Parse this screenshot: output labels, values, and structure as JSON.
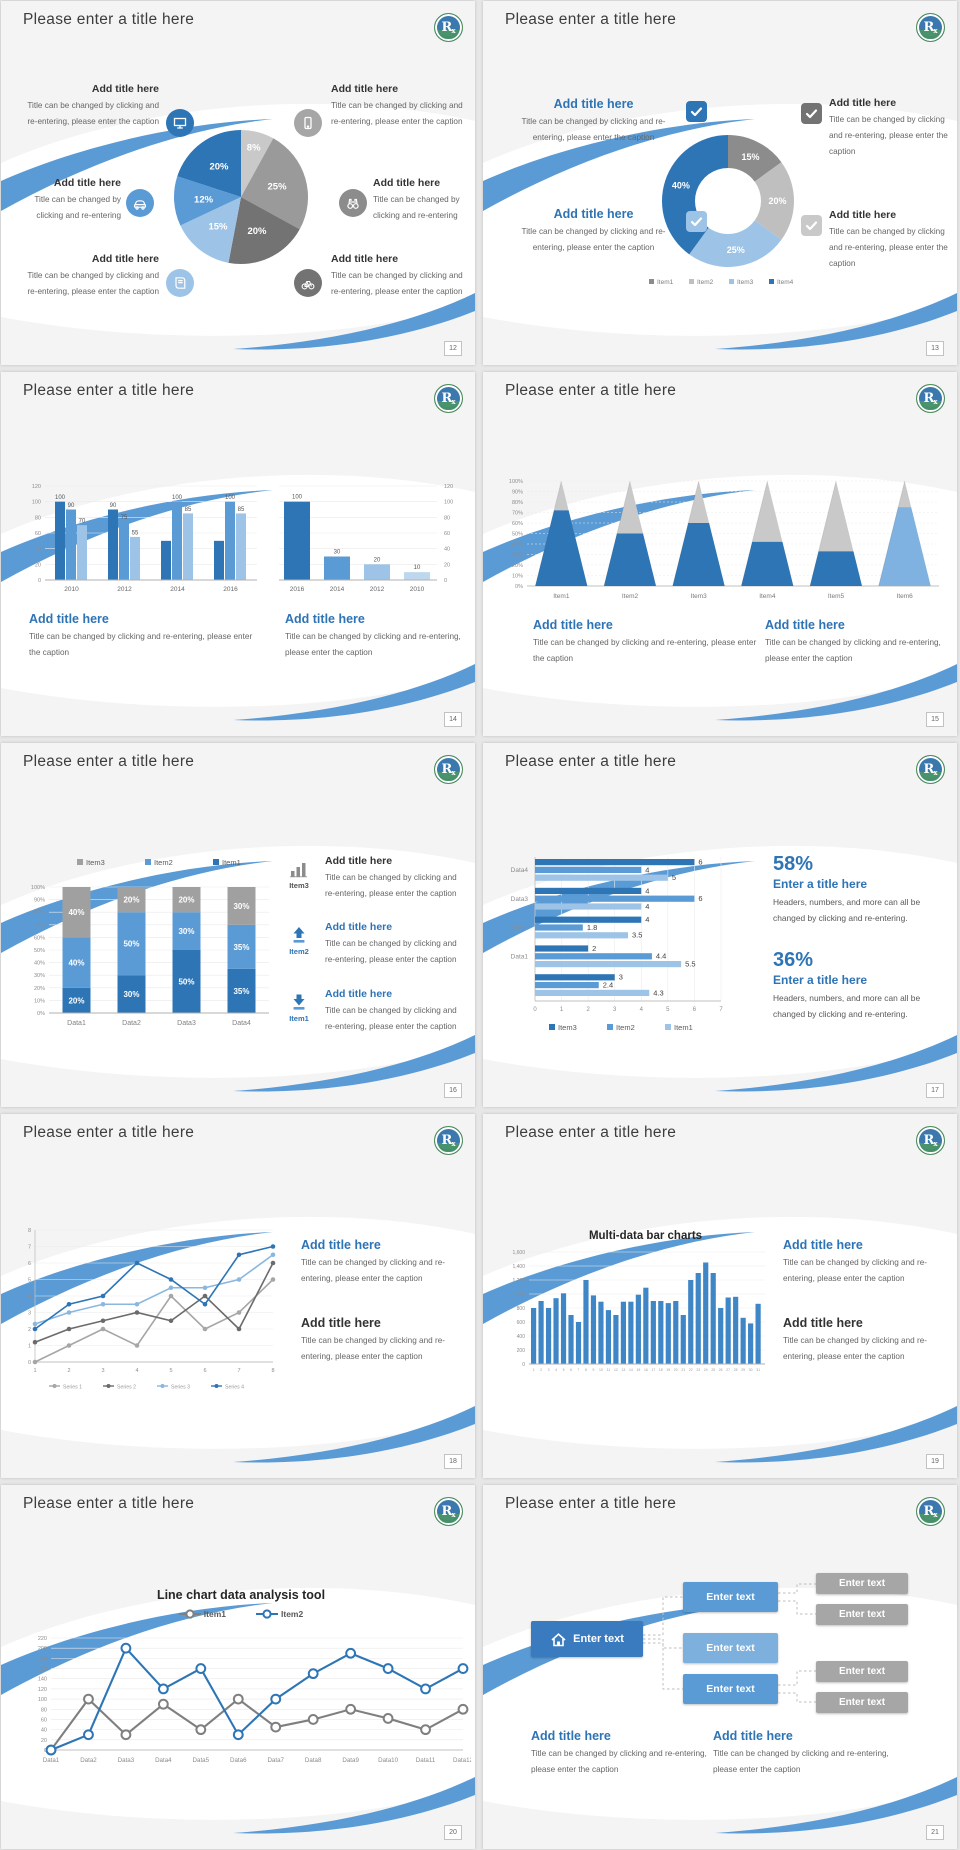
{
  "common": {
    "slide_title": "Please enter a title here",
    "add_title": "Add title here",
    "caption": "Title can be changed by clicking and re-entering, please enter the caption",
    "caption_short": "Title can be changed by clicking and re-entering",
    "logo_text": "R",
    "logo_sub": "x",
    "colors": {
      "accent_blue": "#5b9bd5",
      "heading_blue": "#2e74b5",
      "dark_blue": "#2e75b6",
      "mid_blue": "#5b9bd5",
      "light_blue": "#9dc3e6",
      "pale_blue": "#bdd7ee",
      "dark_gray": "#737373",
      "mid_gray": "#9a9a9a",
      "light_gray": "#c9c9c9"
    }
  },
  "pages": [
    "12",
    "13",
    "14",
    "15",
    "16",
    "17",
    "18",
    "19",
    "20",
    "21"
  ],
  "s5": {
    "items": [
      "Item3",
      "Item2",
      "Item1"
    ]
  },
  "s6": {
    "stat1": "58%",
    "stat2": "36%",
    "stat_title": "Enter a title here",
    "stat_body": "Headers, numbers, and more can all be changed by clicking and re-entering."
  },
  "s10": {
    "node_label": "Enter text"
  },
  "chart_data": [
    {
      "id": "pie1",
      "type": "pie",
      "legend_position": "none",
      "slices": [
        {
          "label": "8%",
          "value": 8,
          "color": "#c9c9c9"
        },
        {
          "label": "25%",
          "value": 25,
          "color": "#9a9a9a"
        },
        {
          "label": "20%",
          "value": 20,
          "color": "#737373"
        },
        {
          "label": "15%",
          "value": 15,
          "color": "#9dc3e6"
        },
        {
          "label": "12%",
          "value": 12,
          "color": "#5b9bd5"
        },
        {
          "label": "20%",
          "value": 20,
          "color": "#2e75b6"
        }
      ]
    },
    {
      "id": "donut1",
      "type": "pie",
      "donut": true,
      "legend_position": "bottom",
      "slices": [
        {
          "label": "15%",
          "value": 15,
          "color": "#8c8c8c"
        },
        {
          "label": "20%",
          "value": 20,
          "color": "#bfbfbf"
        },
        {
          "label": "25%",
          "value": 25,
          "color": "#9dc3e6"
        },
        {
          "label": "40%",
          "value": 40,
          "color": "#2e75b6"
        }
      ],
      "legend": [
        {
          "label": "Item1",
          "color": "#8c8c8c"
        },
        {
          "label": "Item2",
          "color": "#bfbfbf"
        },
        {
          "label": "Item3",
          "color": "#9dc3e6"
        },
        {
          "label": "Item4",
          "color": "#2e75b6"
        }
      ]
    },
    {
      "id": "bars_grouped",
      "type": "bar",
      "categories": [
        "2010",
        "2012",
        "2014",
        "2016"
      ],
      "series": [
        {
          "name": "series-dark",
          "color": "#2e75b6",
          "values": [
            100,
            90,
            50,
            50
          ],
          "labels": [
            "100",
            "90",
            "",
            ""
          ]
        },
        {
          "name": "series-mid",
          "color": "#5b9bd5",
          "values": [
            90,
            75,
            100,
            100
          ],
          "labels": [
            "90",
            "75",
            "100",
            "100"
          ]
        },
        {
          "name": "series-light",
          "color": "#9dc3e6",
          "values": [
            70,
            55,
            85,
            85
          ],
          "labels": [
            "70",
            "55",
            "85",
            "85"
          ]
        }
      ],
      "ylim": [
        0,
        120
      ],
      "ystep": 20,
      "axis_side": "left",
      "grid": true
    },
    {
      "id": "bars_desc",
      "type": "bar",
      "categories": [
        "2016",
        "2014",
        "2012",
        "2010"
      ],
      "values": [
        100,
        30,
        20,
        10
      ],
      "labels": [
        "100",
        "30",
        "20",
        "10"
      ],
      "colors": [
        "#2e75b6",
        "#5b9bd5",
        "#9dc3e6",
        "#bdd7ee"
      ],
      "ylim": [
        0,
        120
      ],
      "ystep": 20,
      "axis_side": "right",
      "grid": true
    },
    {
      "id": "cones",
      "type": "bar",
      "style": "cone",
      "categories": [
        "Item1",
        "Item2",
        "Item3",
        "Item4",
        "Item5",
        "Item6"
      ],
      "values": [
        72,
        50,
        60,
        42,
        33,
        75
      ],
      "colors": [
        "#2e75b6",
        "#2e75b6",
        "#2e75b6",
        "#2e75b6",
        "#2e75b6",
        "#7fb2e0"
      ],
      "top_color": "#c9c9c9",
      "ylim": [
        0,
        100
      ],
      "ystep": 10,
      "unit": "%",
      "grid": true
    },
    {
      "id": "stacked",
      "type": "bar",
      "stacked": true,
      "percent": true,
      "categories": [
        "Data1",
        "Data2",
        "Data3",
        "Data4"
      ],
      "series": [
        {
          "name": "Item1",
          "color": "#2e75b6",
          "values": [
            20,
            30,
            50,
            35
          ]
        },
        {
          "name": "Item2",
          "color": "#5b9bd5",
          "values": [
            40,
            50,
            30,
            35
          ]
        },
        {
          "name": "Item3",
          "color": "#a0a0a0",
          "values": [
            40,
            20,
            20,
            30
          ]
        }
      ],
      "legend_order": [
        "Item3",
        "Item2",
        "Item1"
      ],
      "ylim": [
        0,
        100
      ],
      "ystep": 10,
      "legend_position": "top"
    },
    {
      "id": "hbars",
      "type": "bar",
      "orientation": "horizontal",
      "groups": [
        {
          "label": "Data4",
          "values": [
            6,
            4,
            5
          ]
        },
        {
          "label": "Data3",
          "values": [
            4,
            6,
            4
          ]
        },
        {
          "label": "Data2",
          "values": [
            4,
            1.8,
            3.5
          ]
        },
        {
          "label": "Data1",
          "values": [
            2,
            4.4,
            5.5
          ]
        },
        {
          "label": "",
          "values": [
            3,
            2.4,
            4.3
          ]
        }
      ],
      "series": [
        {
          "name": "Item3",
          "color": "#2e75b6"
        },
        {
          "name": "Item2",
          "color": "#5b9bd5"
        },
        {
          "name": "Item1",
          "color": "#9dc3e6"
        }
      ],
      "xlim": [
        0,
        7
      ],
      "xstep": 1,
      "legend_position": "bottom"
    },
    {
      "id": "lines4",
      "type": "line",
      "x": [
        1,
        2,
        3,
        4,
        5,
        6,
        7,
        8
      ],
      "series": [
        {
          "name": "Series 1",
          "color": "#a6a6a6",
          "values": [
            0,
            1,
            2,
            1,
            4,
            2,
            3,
            5
          ]
        },
        {
          "name": "Series 2",
          "color": "#6b6b6b",
          "values": [
            1.2,
            2,
            2.5,
            3,
            2.5,
            4,
            2,
            6
          ]
        },
        {
          "name": "Series 3",
          "color": "#8ab6e0",
          "values": [
            2.3,
            3,
            3.5,
            3.5,
            4.5,
            4.5,
            5,
            6.5
          ]
        },
        {
          "name": "Series 4",
          "color": "#2e75b6",
          "values": [
            2,
            3.5,
            4,
            6,
            5,
            3.5,
            6.5,
            7
          ]
        }
      ],
      "ylim": [
        0,
        8
      ],
      "ystep": 1,
      "legend_position": "bottom",
      "grid": true
    },
    {
      "id": "bars31",
      "type": "bar",
      "title": "Multi-data bar charts",
      "x": [
        "1",
        "2",
        "3",
        "4",
        "5",
        "6",
        "7",
        "8",
        "9",
        "10",
        "11",
        "12",
        "13",
        "14",
        "15",
        "16",
        "17",
        "18",
        "19",
        "20",
        "21",
        "22",
        "23",
        "24",
        "25",
        "26",
        "27",
        "28",
        "29",
        "30",
        "31"
      ],
      "values": [
        800,
        900,
        800,
        940,
        1010,
        700,
        600,
        1200,
        980,
        890,
        770,
        700,
        890,
        890,
        990,
        1090,
        900,
        900,
        870,
        900,
        700,
        1200,
        1300,
        1450,
        1300,
        800,
        950,
        960,
        660,
        580,
        860
      ],
      "color": "#3f86c6",
      "ylim": [
        0,
        1600
      ],
      "ystep": 200,
      "grid": true
    },
    {
      "id": "lines2",
      "type": "line",
      "title": "Line chart data analysis tool",
      "categories": [
        "Data1",
        "Data2",
        "Data3",
        "Data4",
        "Data5",
        "Data6",
        "Data7",
        "Data8",
        "Data9",
        "Data10",
        "Data11",
        "Data12"
      ],
      "series": [
        {
          "name": "Item1",
          "color": "#7f7f7f",
          "values": [
            0,
            100,
            30,
            90,
            40,
            100,
            45,
            60,
            80,
            62,
            40,
            80
          ]
        },
        {
          "name": "Item2",
          "color": "#2e75b6",
          "values": [
            0,
            30,
            200,
            120,
            160,
            30,
            100,
            150,
            190,
            160,
            120,
            160
          ]
        }
      ],
      "ylim": [
        0,
        220
      ],
      "ystep": 20,
      "legend_position": "top",
      "grid": true
    }
  ]
}
